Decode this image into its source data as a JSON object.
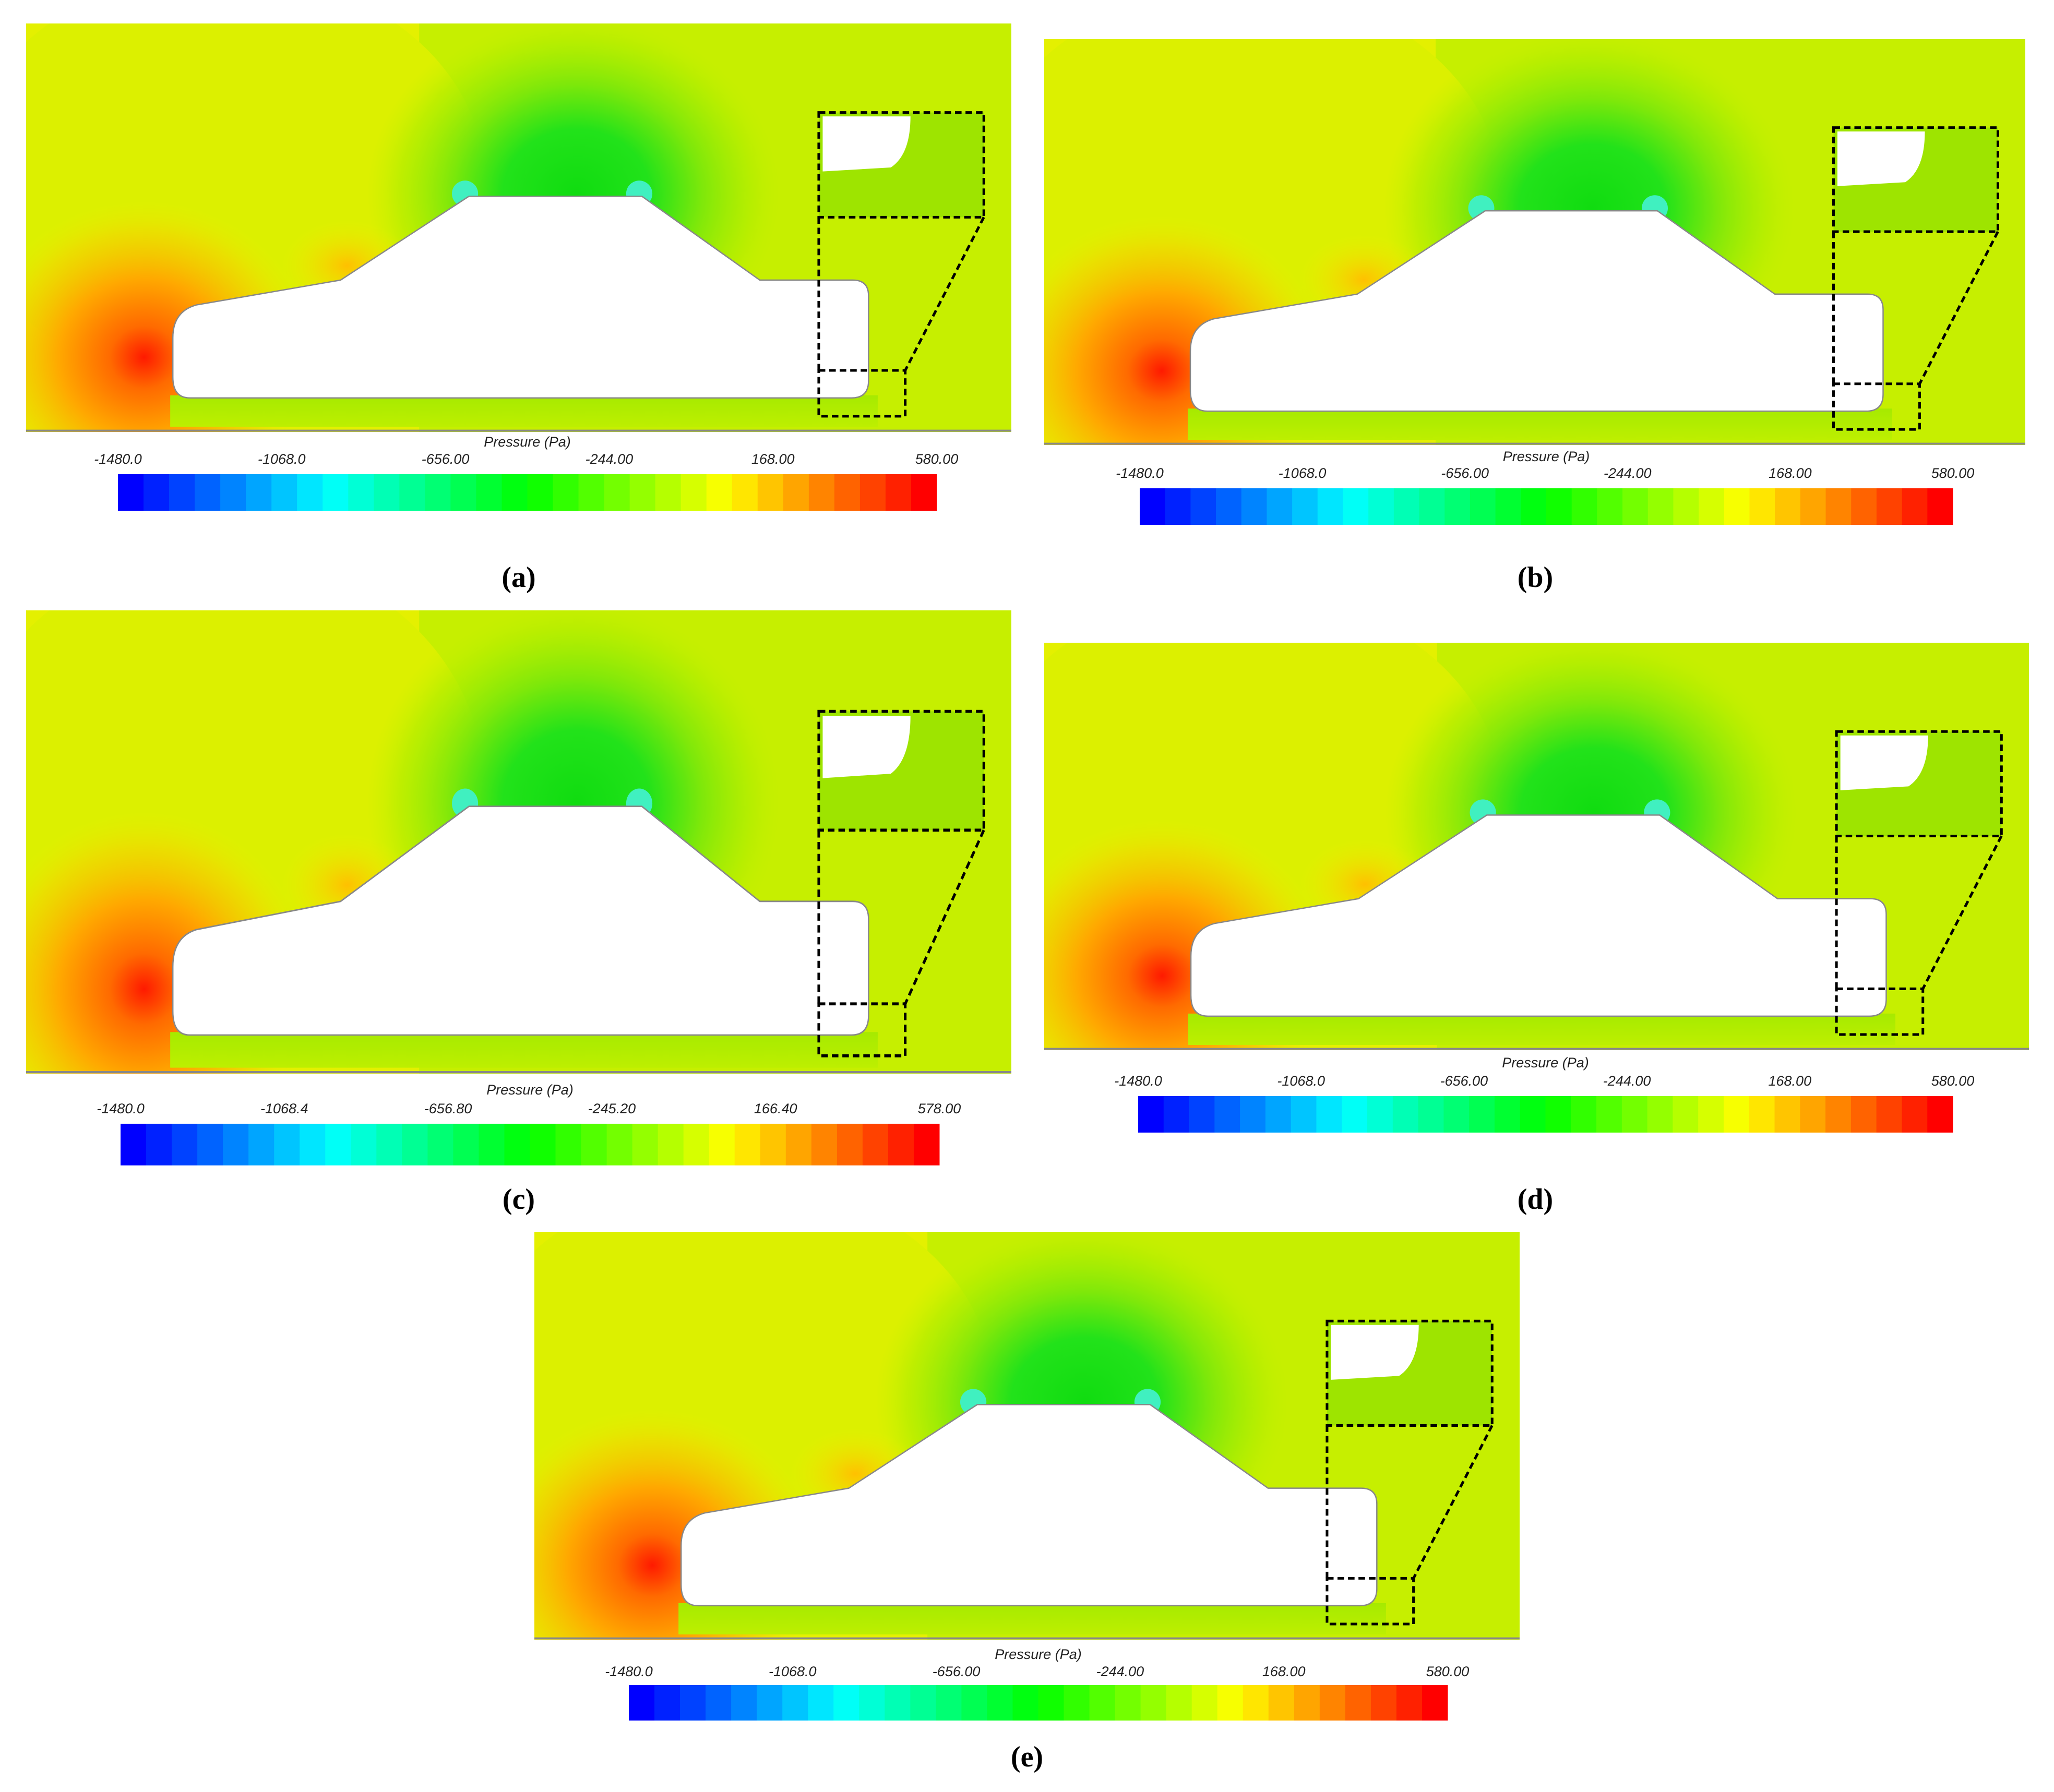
{
  "panels": [
    {
      "caption": "(a)",
      "colorbar": {
        "title": "Pressure (Pa)",
        "labels": [
          "-1480.0",
          "-1068.0",
          "-656.00",
          "-244.00",
          "168.00",
          "580.00"
        ]
      }
    },
    {
      "caption": "(b)",
      "colorbar": {
        "title": "Pressure (Pa)",
        "labels": [
          "-1480.0",
          "-1068.0",
          "-656.00",
          "-244.00",
          "168.00",
          "580.00"
        ]
      }
    },
    {
      "caption": "(c)",
      "colorbar": {
        "title": "Pressure (Pa)",
        "labels": [
          "-1480.0",
          "-1068.4",
          "-656.80",
          "-245.20",
          "166.40",
          "578.00"
        ]
      }
    },
    {
      "caption": "(d)",
      "colorbar": {
        "title": "Pressure (Pa)",
        "labels": [
          "-1480.0",
          "-1068.0",
          "-656.00",
          "-244.00",
          "168.00",
          "580.00"
        ]
      }
    },
    {
      "caption": "(e)",
      "colorbar": {
        "title": "Pressure (Pa)",
        "labels": [
          "-1480.0",
          "-1068.0",
          "-656.00",
          "-244.00",
          "168.00",
          "580.00"
        ]
      }
    }
  ]
}
